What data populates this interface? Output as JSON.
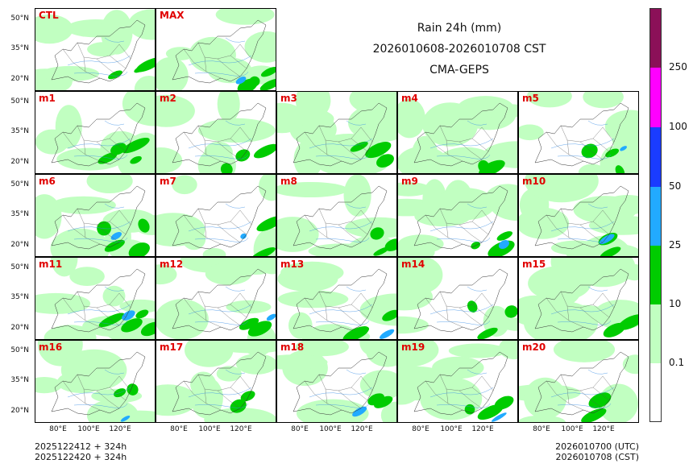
{
  "title": {
    "line1": "Rain 24h (mm)",
    "line2": "2026010608-2026010708 CST",
    "line3": "CMA-GEPS"
  },
  "panels": [
    "CTL",
    "MAX",
    "m1",
    "m2",
    "m3",
    "m4",
    "m5",
    "m6",
    "m7",
    "m8",
    "m9",
    "m10",
    "m11",
    "m12",
    "m13",
    "m14",
    "m15",
    "m16",
    "m17",
    "m18",
    "m19",
    "m20"
  ],
  "axes": {
    "lat_ticks": [
      "50°N",
      "35°N",
      "20°N"
    ],
    "lon_ticks": [
      "80°E",
      "100°E",
      "120°E"
    ]
  },
  "colorbar": {
    "levels": [
      "0.1",
      "10",
      "25",
      "50",
      "100",
      "250"
    ],
    "colors": [
      "#ffffff",
      "#c1ffc1",
      "#00cc00",
      "#22aaff",
      "#1a3cff",
      "#ff00ff",
      "#8b1058"
    ]
  },
  "footer": {
    "left_line1": "2025122412 + 324h",
    "left_line2": "2025122420 + 324h",
    "right_line1": "2026010700 (UTC)",
    "right_line2": "2026010708 (CST)"
  }
}
